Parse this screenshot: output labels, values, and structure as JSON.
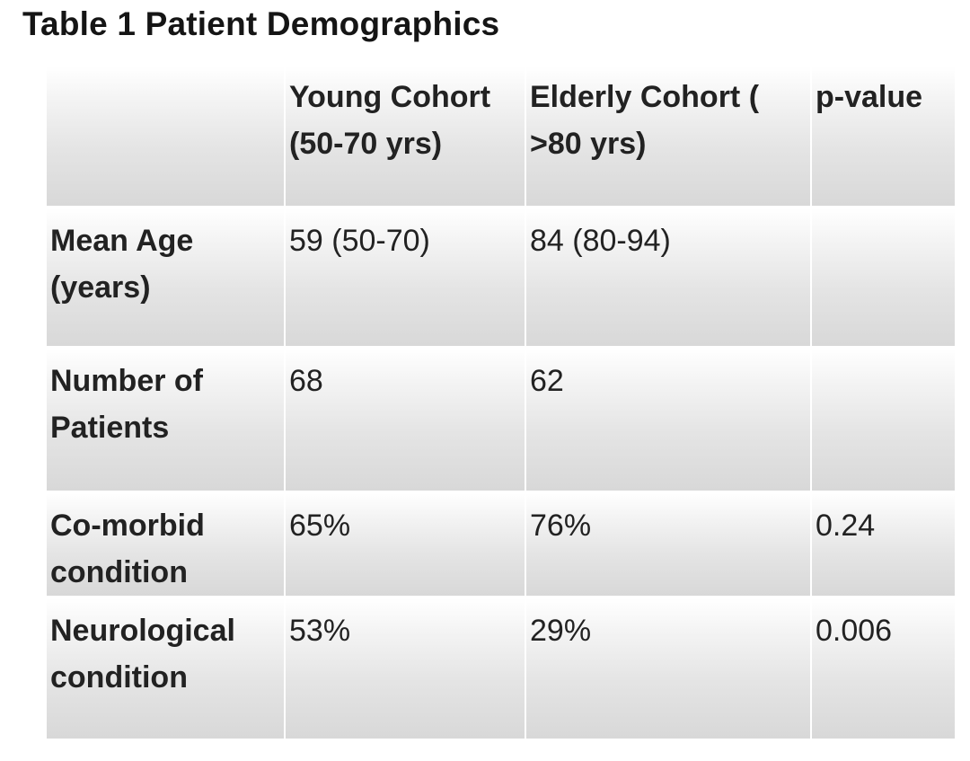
{
  "title": "Table 1 Patient Demographics",
  "table": {
    "headers": [
      "",
      "Young Cohort (50-70 yrs)",
      "Elderly Cohort ( >80 yrs)",
      "p-value"
    ],
    "rows": [
      {
        "label": "Mean Age (years)",
        "young": "59 (50-70)",
        "elderly": "84 (80-94)",
        "p": ""
      },
      {
        "label": "Number of Patients",
        "young": "68",
        "elderly": "62",
        "p": ""
      },
      {
        "label": "Co-morbid condition",
        "young": "65%",
        "elderly": "76%",
        "p": "0.24"
      },
      {
        "label": "Neurological condition",
        "young": "53%",
        "elderly": "29%",
        "p": "0.006"
      }
    ]
  }
}
